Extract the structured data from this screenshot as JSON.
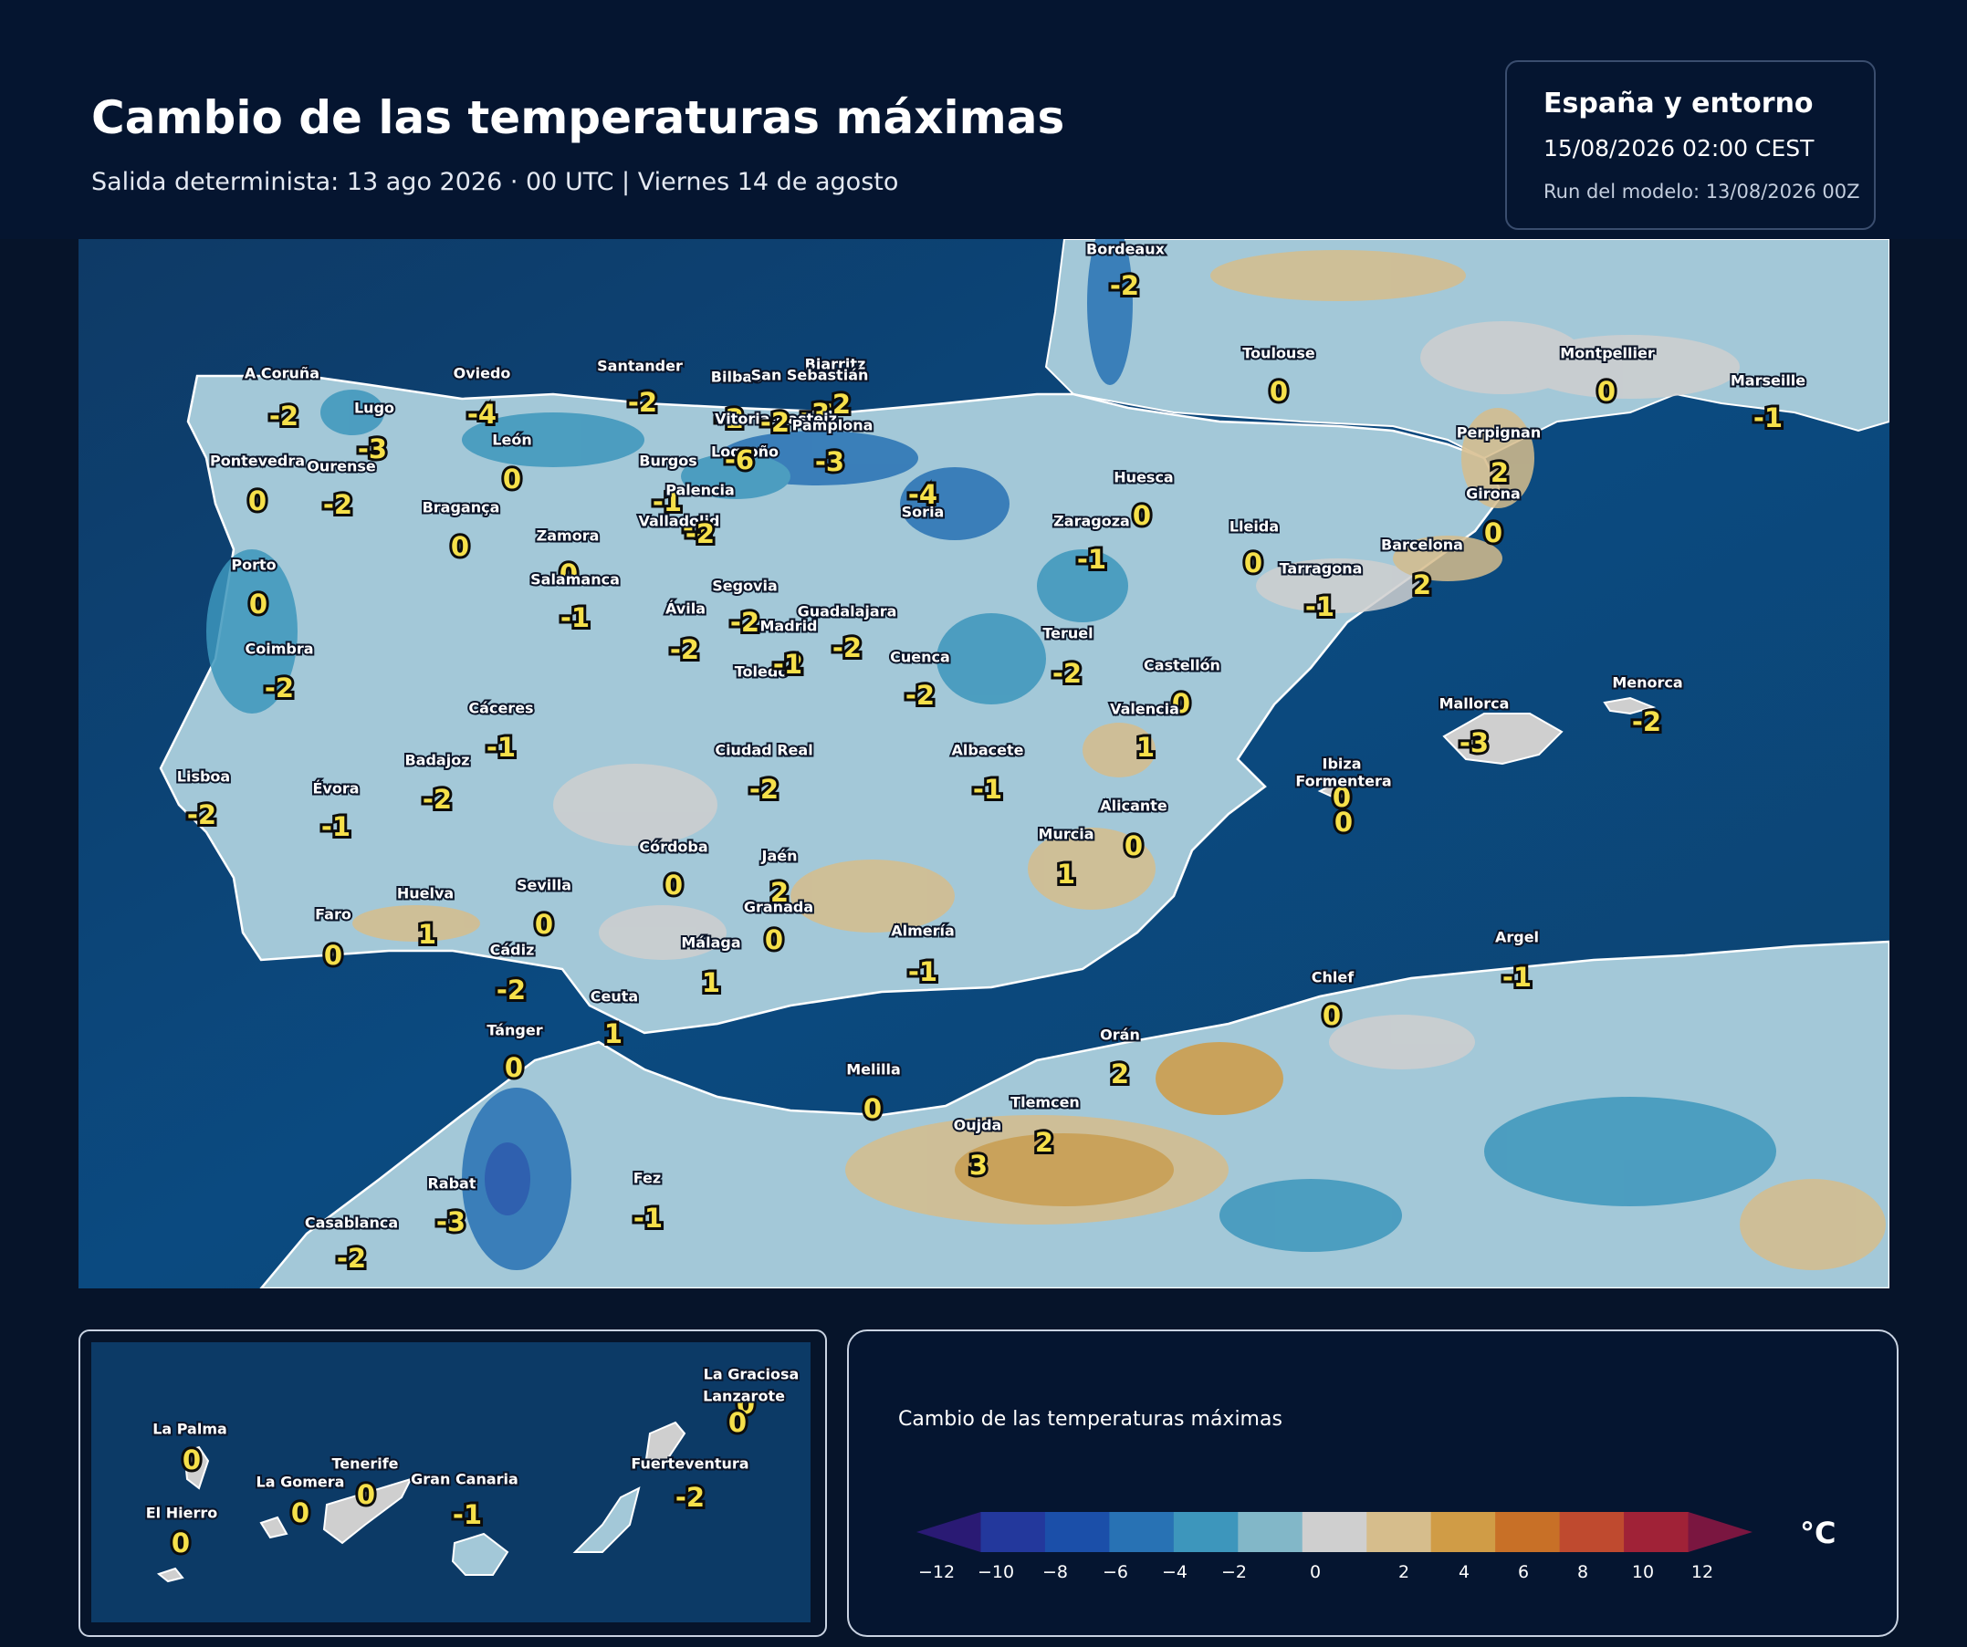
{
  "header": {
    "title": "Cambio de las temperaturas máximas",
    "subtitle": "Salida determinista: 13 ago 2026 · 00 UTC  |  Viernes 14 de agosto"
  },
  "info": {
    "region": "España y entorno",
    "valid_time": "15/08/2026  02:00 CEST",
    "model_run": "Run del modelo: 13/08/2026 00Z"
  },
  "cities": [
    {
      "name": "Bordeaux",
      "value": "-2"
    },
    {
      "name": "A Coruña",
      "value": "-2"
    },
    {
      "name": "Lugo",
      "value": "-3"
    },
    {
      "name": "Oviedo",
      "value": "-4"
    },
    {
      "name": "Santander",
      "value": "-2"
    },
    {
      "name": "Bilbao",
      "value": "-2"
    },
    {
      "name": "Biarritz",
      "value": "-2"
    },
    {
      "name": "San Sebastián",
      "value": "-3"
    },
    {
      "name": "Vitoria-Gasteiz",
      "value": "-2"
    },
    {
      "name": "Pamplona",
      "value": "-3"
    },
    {
      "name": "Toulouse",
      "value": "0"
    },
    {
      "name": "Montpellier",
      "value": "0"
    },
    {
      "name": "Marseille",
      "value": "-1"
    },
    {
      "name": "Pontevedra",
      "value": "0"
    },
    {
      "name": "Ourense",
      "value": "-2"
    },
    {
      "name": "León",
      "value": "0"
    },
    {
      "name": "Burgos",
      "value": "-1"
    },
    {
      "name": "Logroño",
      "value": "-6"
    },
    {
      "name": "Perpignan",
      "value": "2"
    },
    {
      "name": "Huesca",
      "value": "0"
    },
    {
      "name": "Bragança",
      "value": "0"
    },
    {
      "name": "Palencia",
      "value": "-1"
    },
    {
      "name": "Soria",
      "value": "-4"
    },
    {
      "name": "Girona",
      "value": "0"
    },
    {
      "name": "Zamora",
      "value": "0"
    },
    {
      "name": "Valladolid",
      "value": "-2"
    },
    {
      "name": "Zaragoza",
      "value": "-1"
    },
    {
      "name": "Lleida",
      "value": "0"
    },
    {
      "name": "Porto",
      "value": "0"
    },
    {
      "name": "Salamanca",
      "value": "-1"
    },
    {
      "name": "Barcelona",
      "value": "2"
    },
    {
      "name": "Tarragona",
      "value": "-1"
    },
    {
      "name": "Segovia",
      "value": "-2"
    },
    {
      "name": "Ávila",
      "value": "-2"
    },
    {
      "name": "Guadalajara",
      "value": "-2"
    },
    {
      "name": "Madrid",
      "value": "-2"
    },
    {
      "name": "Teruel",
      "value": "-2"
    },
    {
      "name": "Coimbra",
      "value": "-2"
    },
    {
      "name": "Cuenca",
      "value": "-2"
    },
    {
      "name": "Toledo",
      "value": "-1"
    },
    {
      "name": "Castellón",
      "value": "0"
    },
    {
      "name": "Cáceres",
      "value": "-1"
    },
    {
      "name": "Valencia",
      "value": "1"
    },
    {
      "name": "Menorca",
      "value": "-2"
    },
    {
      "name": "Mallorca",
      "value": "-3"
    },
    {
      "name": "Ciudad Real",
      "value": "-2"
    },
    {
      "name": "Albacete",
      "value": "-1"
    },
    {
      "name": "Badajoz",
      "value": "-2"
    },
    {
      "name": "Ibiza",
      "value": "0"
    },
    {
      "name": "Lisboa",
      "value": "-2"
    },
    {
      "name": "Formentera",
      "value": "0"
    },
    {
      "name": "Évora",
      "value": "-1"
    },
    {
      "name": "Alicante",
      "value": "0"
    },
    {
      "name": "Murcia",
      "value": "1"
    },
    {
      "name": "Córdoba",
      "value": "0"
    },
    {
      "name": "Jaén",
      "value": "2"
    },
    {
      "name": "Sevilla",
      "value": "0"
    },
    {
      "name": "Huelva",
      "value": "1"
    },
    {
      "name": "Granada",
      "value": "0"
    },
    {
      "name": "Faro",
      "value": "0"
    },
    {
      "name": "Almería",
      "value": "-1"
    },
    {
      "name": "Málaga",
      "value": "1"
    },
    {
      "name": "Argel",
      "value": "-1"
    },
    {
      "name": "Cádiz",
      "value": "-2"
    },
    {
      "name": "Chlef",
      "value": "0"
    },
    {
      "name": "Ceuta",
      "value": "1"
    },
    {
      "name": "Tánger",
      "value": "0"
    },
    {
      "name": "Orán",
      "value": "2"
    },
    {
      "name": "Melilla",
      "value": "0"
    },
    {
      "name": "Tlemcen",
      "value": "2"
    },
    {
      "name": "Oujda",
      "value": "3"
    },
    {
      "name": "Fez",
      "value": "-1"
    },
    {
      "name": "Rabat",
      "value": "-3"
    },
    {
      "name": "Casablanca",
      "value": "-2"
    }
  ],
  "canary": [
    {
      "name": "La Graciosa",
      "value": "0"
    },
    {
      "name": "Lanzarote",
      "value": "0"
    },
    {
      "name": "La Palma",
      "value": "0"
    },
    {
      "name": "Tenerife",
      "value": "0"
    },
    {
      "name": "Fuerteventura",
      "value": "-2"
    },
    {
      "name": "La Gomera",
      "value": "0"
    },
    {
      "name": "Gran Canaria",
      "value": "-1"
    },
    {
      "name": "El Hierro",
      "value": "0"
    }
  ],
  "legend": {
    "title": "Cambio de las temperaturas máximas",
    "unit": "°C",
    "ticks": [
      "−12",
      "−10",
      "−8",
      "−6",
      "−4",
      "−2",
      "0",
      "2",
      "4",
      "6",
      "8",
      "10",
      "12"
    ],
    "colors": [
      "#2a1a74",
      "#23389c",
      "#1b4fa9",
      "#2872b4",
      "#3d96bc",
      "#82b7c8",
      "#cfcfcf",
      "#d6bd8c",
      "#d09c46",
      "#c87027",
      "#bf4a2f",
      "#a02237",
      "#7a1640"
    ]
  }
}
